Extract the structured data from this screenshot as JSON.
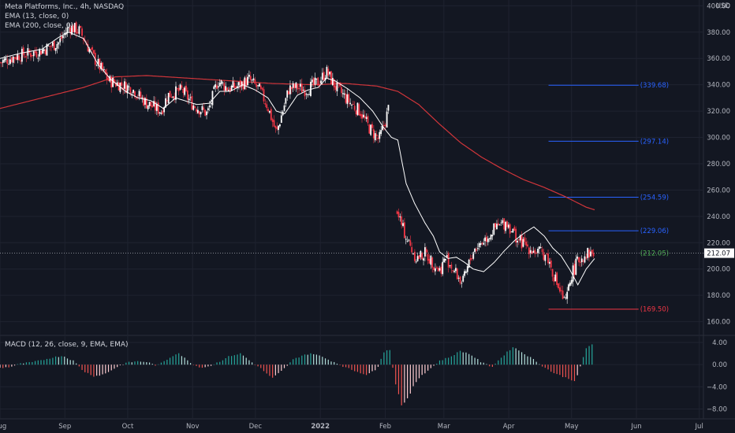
{
  "header": {
    "symbol_line": "Meta Platforms, Inc., 4h, NASDAQ",
    "ema_fast": "EMA (13, close, 0)",
    "ema_slow": "EMA (200, close, 0)",
    "currency": "USD"
  },
  "macd_label": "MACD (12, 26, close, 9, EMA, EMA)",
  "colors": {
    "background": "#131722",
    "grid": "#1f2330",
    "bull": "#26a69a",
    "bear": "#ef5350",
    "candle_up": "#ffffff",
    "candle_down": "#f23645",
    "ema_fast": "#ffffff",
    "ema_slow": "#d0353a",
    "fib_blue": "#2962ff",
    "fib_green": "#4caf50",
    "fib_red": "#f23645"
  },
  "chart_data": [
    {
      "type": "candlestick",
      "title": "Meta Platforms, Inc., 4h, NASDAQ",
      "y_axis": {
        "unit": "USD",
        "ticks": [
          "400.00",
          "380.00",
          "360.00",
          "340.00",
          "320.00",
          "300.00",
          "280.00",
          "260.00",
          "240.00",
          "220.00",
          "200.00",
          "180.00",
          "160.00"
        ],
        "range": [
          152,
          402
        ]
      },
      "x_axis": {
        "ticks": [
          "Aug",
          "Sep",
          "Oct",
          "Nov",
          "Dec",
          "2022",
          "Feb",
          "Mar",
          "Apr",
          "May",
          "Jun",
          "Jul"
        ],
        "range_days": [
          0,
          336
        ]
      },
      "last_price": "212.07",
      "last_price_value": 212.07,
      "price_path_days": [
        0,
        8,
        18,
        28,
        33,
        38,
        45,
        52,
        58,
        63,
        70,
        77,
        80,
        87,
        92,
        99,
        104,
        109,
        114,
        119,
        124,
        128,
        132,
        138,
        142,
        146,
        152,
        156,
        160,
        164,
        168,
        172,
        176,
        181,
        184,
        186,
        189,
        192,
        196,
        199,
        203,
        210,
        213,
        218,
        221,
        226,
        231,
        236,
        242,
        247,
        250,
        256,
        261,
        266,
        270,
        273,
        276,
        280,
        284
      ],
      "price_path_values": [
        357,
        362,
        365,
        372,
        384,
        381,
        360,
        343,
        340,
        337,
        326,
        320,
        332,
        336,
        325,
        318,
        343,
        337,
        339,
        344,
        336,
        323,
        303,
        337,
        338,
        336,
        342,
        350,
        339,
        332,
        325,
        320,
        308,
        298,
        312,
        325,
        250,
        232,
        217,
        208,
        212,
        199,
        209,
        196,
        189,
        214,
        222,
        230,
        236,
        223,
        219,
        213,
        211,
        189,
        173,
        196,
        206,
        212,
        212
      ],
      "ema13_days": [
        0,
        10,
        20,
        28,
        33,
        40,
        47,
        53,
        60,
        66,
        72,
        78,
        84,
        88,
        94,
        100,
        105,
        110,
        116,
        122,
        128,
        132,
        136,
        142,
        147,
        152,
        156,
        160,
        166,
        172,
        178,
        183,
        187,
        190,
        194,
        198,
        203,
        207,
        210,
        214,
        218,
        222,
        226,
        231,
        236,
        241,
        246,
        251,
        255,
        260,
        264,
        268,
        272,
        276,
        280,
        284
      ],
      "ema13_values": [
        360,
        364,
        367,
        376,
        380,
        375,
        355,
        344,
        335,
        330,
        328,
        322,
        330,
        328,
        325,
        326,
        335,
        335,
        340,
        336,
        330,
        320,
        318,
        332,
        336,
        338,
        345,
        343,
        337,
        330,
        320,
        308,
        300,
        298,
        265,
        250,
        235,
        225,
        213,
        208,
        209,
        205,
        200,
        198,
        205,
        214,
        222,
        228,
        232,
        225,
        216,
        210,
        200,
        188,
        200,
        208
      ],
      "ema200_days": [
        0,
        20,
        40,
        55,
        70,
        90,
        110,
        130,
        150,
        165,
        180,
        190,
        200,
        210,
        220,
        230,
        240,
        250,
        260,
        270,
        280,
        284
      ],
      "ema200_values": [
        322,
        330,
        338,
        346,
        347,
        345,
        343,
        341,
        340,
        341,
        339,
        335,
        325,
        310,
        296,
        285,
        276,
        268,
        262,
        255,
        247,
        245
      ],
      "fib_levels": [
        {
          "label": "(339.68)",
          "value": 339.68,
          "color": "blue"
        },
        {
          "label": "(297.14)",
          "value": 297.14,
          "color": "blue"
        },
        {
          "label": "(254.59)",
          "value": 254.59,
          "color": "blue"
        },
        {
          "label": "(229.06)",
          "value": 229.06,
          "color": "blue"
        },
        {
          "label": "(212.05)",
          "value": 212.05,
          "color": "green"
        },
        {
          "label": "(169.50)",
          "value": 169.5,
          "color": "red"
        }
      ],
      "fib_start_day": 262,
      "fib_end_day": 305
    },
    {
      "type": "bar",
      "title": "MACD (12, 26, close, 9, EMA, EMA)",
      "y_axis": {
        "ticks": [
          "4.00",
          "0.00",
          "−4.00",
          "−8.00"
        ],
        "range": [
          -9.5,
          5.0
        ]
      },
      "histogram_days": [
        0,
        5,
        10,
        15,
        20,
        25,
        30,
        35,
        40,
        45,
        50,
        55,
        60,
        65,
        70,
        75,
        80,
        85,
        90,
        95,
        100,
        105,
        110,
        115,
        120,
        125,
        130,
        135,
        140,
        145,
        150,
        155,
        160,
        165,
        170,
        175,
        180,
        183,
        186,
        189,
        192,
        195,
        198,
        201,
        205,
        210,
        215,
        220,
        225,
        230,
        235,
        240,
        245,
        250,
        255,
        260,
        265,
        270,
        275,
        280,
        284
      ],
      "histogram_values": [
        -0.6,
        -0.4,
        0.2,
        0.4,
        0.8,
        1.3,
        1.6,
        0.7,
        -1.2,
        -2.1,
        -1.7,
        -0.6,
        0.3,
        0.6,
        0.5,
        -0.2,
        1.0,
        2.2,
        0.6,
        -0.5,
        -0.3,
        0.6,
        1.6,
        2.0,
        0.5,
        -0.8,
        -2.5,
        -1.0,
        0.9,
        1.8,
        2.0,
        1.2,
        0.4,
        -0.5,
        -1.2,
        -1.8,
        -0.9,
        2.2,
        3.0,
        -3.5,
        -7.5,
        -6.0,
        -3.5,
        -2.0,
        -0.9,
        0.7,
        1.4,
        2.5,
        1.8,
        0.4,
        -0.4,
        1.5,
        3.2,
        2.1,
        0.9,
        -0.5,
        -1.6,
        -2.3,
        -3.0,
        3.0,
        4.0
      ]
    }
  ]
}
